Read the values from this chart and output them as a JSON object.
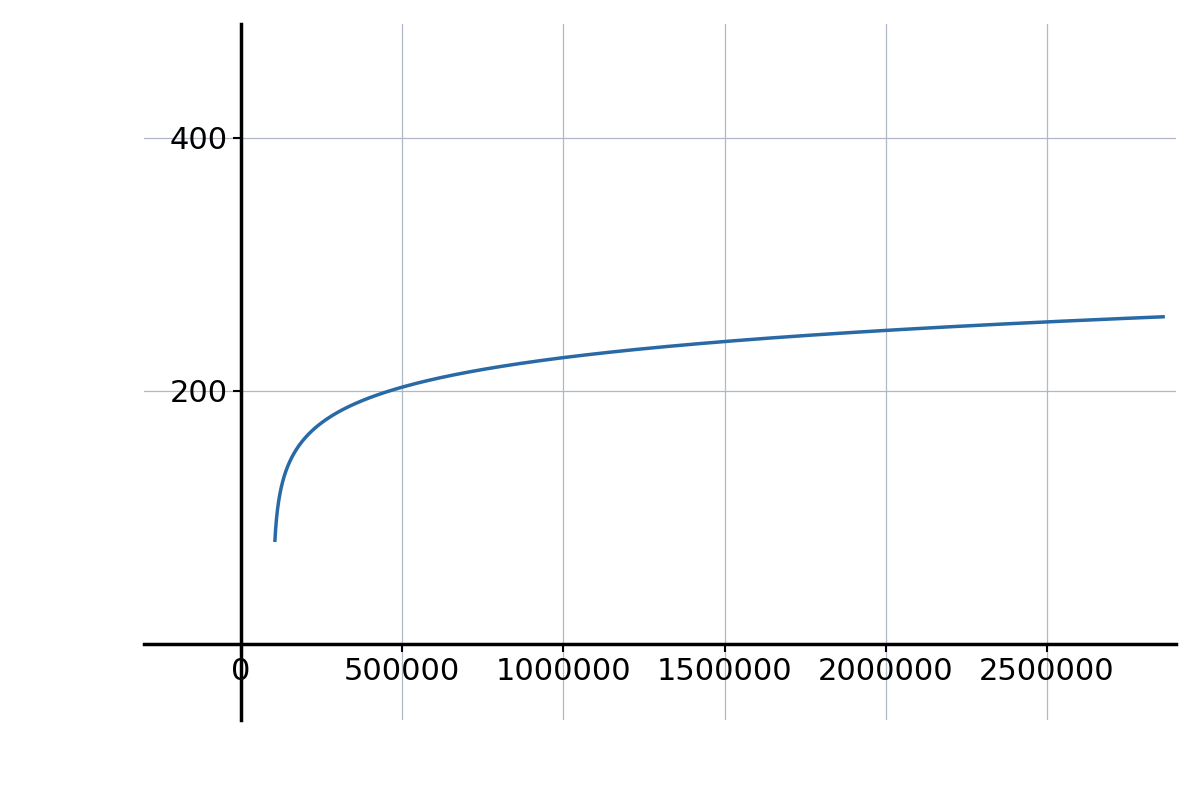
{
  "line_color": "#2869a6",
  "line_width": 2.5,
  "background_color": "#ffffff",
  "grid_color": "#b0b8c8",
  "axis_color": "#000000",
  "xlim": [
    -300000,
    2900000
  ],
  "ylim": [
    -60,
    490
  ],
  "x_ticks": [
    0,
    500000,
    1000000,
    1500000,
    2000000,
    2500000
  ],
  "y_ticks": [
    200,
    400
  ],
  "x_start": 5000,
  "x_end": 2860000,
  "a": 20.5,
  "b": -112.0,
  "axis_linewidth": 2.5,
  "tick_fontsize": 22,
  "figsize": [
    12,
    8
  ],
  "y_axis_x": 155000,
  "x_axis_y": 0
}
